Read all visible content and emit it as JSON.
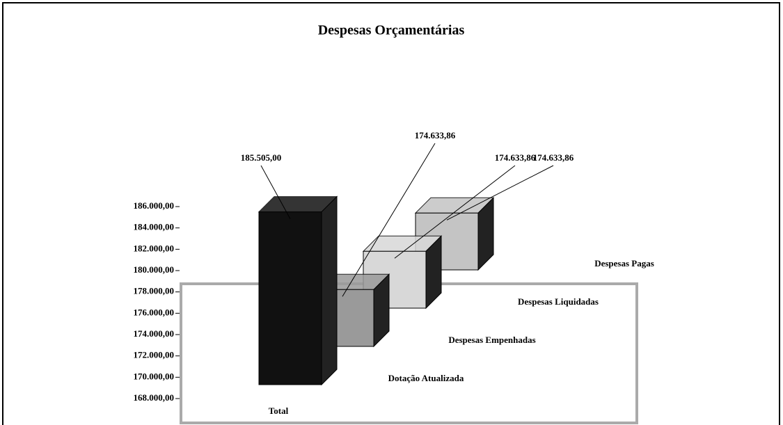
{
  "chart_data": {
    "type": "bar3d",
    "title": "Despesas Orçamentárias",
    "categories": [
      "Total"
    ],
    "series": [
      {
        "name": "Dotação Atualizada",
        "color": "#111111",
        "values": [
          185505.0
        ],
        "value_labels": [
          "185.505,00"
        ]
      },
      {
        "name": "Despesas Empenhadas",
        "color": "#9a9a9a",
        "values": [
          174633.86
        ],
        "value_labels": [
          "174.633,86"
        ]
      },
      {
        "name": "Despesas Liquidadas",
        "color": "#d8d8d8",
        "values": [
          174633.86
        ],
        "value_labels": [
          "174.633,86"
        ]
      },
      {
        "name": "Despesas Pagas",
        "color": "#c4c4c4",
        "values": [
          174633.86
        ],
        "value_labels": [
          "174.633,86"
        ]
      }
    ],
    "ylim": [
      168000,
      186000
    ],
    "yticks": [
      {
        "value": 168000,
        "label": "168.000,00"
      },
      {
        "value": 170000,
        "label": "170.000,00"
      },
      {
        "value": 172000,
        "label": "172.000,00"
      },
      {
        "value": 174000,
        "label": "174.000,00"
      },
      {
        "value": 176000,
        "label": "176.000,00"
      },
      {
        "value": 178000,
        "label": "178.000,00"
      },
      {
        "value": 180000,
        "label": "180.000,00"
      },
      {
        "value": 182000,
        "label": "182.000,00"
      },
      {
        "value": 184000,
        "label": "184.000,00"
      },
      {
        "value": 186000,
        "label": "186.000,00"
      }
    ],
    "grid": false
  }
}
